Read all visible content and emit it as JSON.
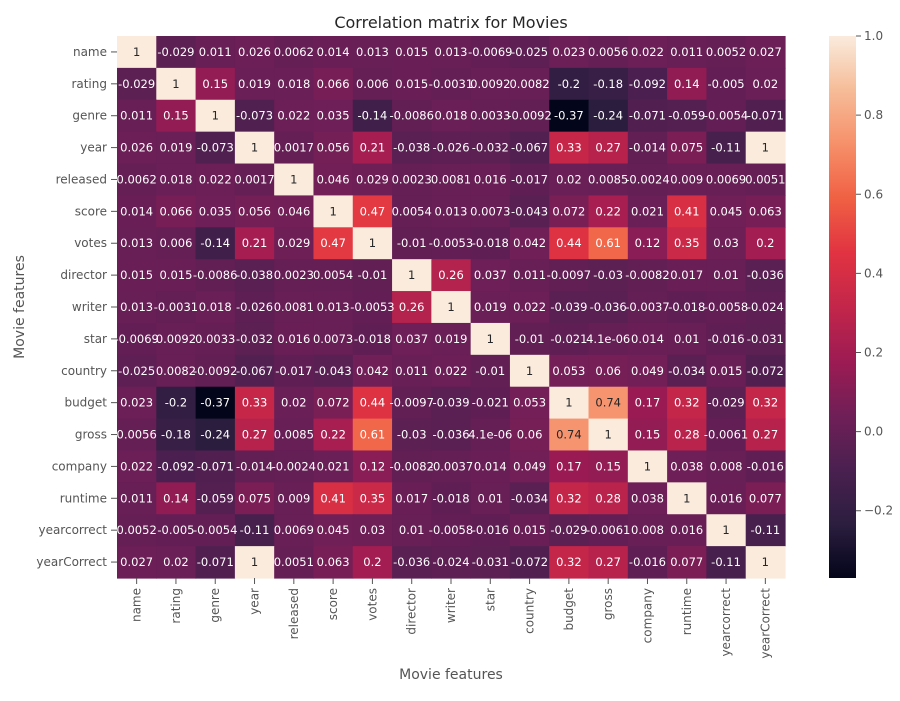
{
  "chart_data": {
    "type": "heatmap",
    "title": "Correlation matrix for Movies",
    "xlabel": "Movie features",
    "ylabel": "Movie features",
    "labels": [
      "name",
      "rating",
      "genre",
      "year",
      "released",
      "score",
      "votes",
      "director",
      "writer",
      "star",
      "country",
      "budget",
      "gross",
      "company",
      "runtime",
      "yearcorrect",
      "yearCorrect"
    ],
    "cell_labels": [
      [
        "1",
        "-0.029",
        "0.011",
        "0.026",
        "0.0062",
        "0.014",
        "0.013",
        "0.015",
        "0.013",
        "-0.0069",
        "-0.025",
        "0.023",
        "0.0056",
        "0.022",
        "0.011",
        "0.0052",
        "0.027"
      ],
      [
        "-0.029",
        "1",
        "0.15",
        "0.019",
        "0.018",
        "0.066",
        "0.006",
        "0.015",
        "-0.0031",
        "0.0092",
        "0.0082",
        "-0.2",
        "-0.18",
        "-0.092",
        "0.14",
        "-0.005",
        "0.02"
      ],
      [
        "0.011",
        "0.15",
        "1",
        "-0.073",
        "0.022",
        "0.035",
        "-0.14",
        "-0.0086",
        "0.018",
        "0.0033",
        "-0.0092",
        "-0.37",
        "-0.24",
        "-0.071",
        "-0.059",
        "-0.0054",
        "-0.071"
      ],
      [
        "0.026",
        "0.019",
        "-0.073",
        "1",
        "0.0017",
        "0.056",
        "0.21",
        "-0.038",
        "-0.026",
        "-0.032",
        "-0.067",
        "0.33",
        "0.27",
        "-0.014",
        "0.075",
        "-0.11",
        "1"
      ],
      [
        "0.0062",
        "0.018",
        "0.022",
        "0.0017",
        "1",
        "0.046",
        "0.029",
        "0.0023",
        "0.0081",
        "0.016",
        "-0.017",
        "0.02",
        "0.0085",
        "-0.0024",
        "0.009",
        "0.0069",
        "0.0051"
      ],
      [
        "0.014",
        "0.066",
        "0.035",
        "0.056",
        "0.046",
        "1",
        "0.47",
        "0.0054",
        "0.013",
        "0.0073",
        "-0.043",
        "0.072",
        "0.22",
        "0.021",
        "0.41",
        "0.045",
        "0.063"
      ],
      [
        "0.013",
        "0.006",
        "-0.14",
        "0.21",
        "0.029",
        "0.47",
        "1",
        "-0.01",
        "-0.0053",
        "-0.018",
        "0.042",
        "0.44",
        "0.61",
        "0.12",
        "0.35",
        "0.03",
        "0.2"
      ],
      [
        "0.015",
        "0.015",
        "-0.0086",
        "-0.038",
        "0.0023",
        "0.0054",
        "-0.01",
        "1",
        "0.26",
        "0.037",
        "0.011",
        "-0.0097",
        "-0.03",
        "-0.0082",
        "0.017",
        "0.01",
        "-0.036"
      ],
      [
        "0.013",
        "-0.0031",
        "0.018",
        "-0.026",
        "0.0081",
        "0.013",
        "-0.0053",
        "0.26",
        "1",
        "0.019",
        "0.022",
        "-0.039",
        "-0.036",
        "-0.0037",
        "-0.018",
        "-0.0058",
        "-0.024"
      ],
      [
        "-0.0069",
        "0.0092",
        "0.0033",
        "-0.032",
        "0.016",
        "0.0073",
        "-0.018",
        "0.037",
        "0.019",
        "1",
        "-0.01",
        "-0.021",
        "4.1e-06",
        "0.014",
        "0.01",
        "-0.016",
        "-0.031"
      ],
      [
        "-0.025",
        "0.0082",
        "-0.0092",
        "-0.067",
        "-0.017",
        "-0.043",
        "0.042",
        "0.011",
        "0.022",
        "-0.01",
        "1",
        "0.053",
        "0.06",
        "0.049",
        "-0.034",
        "0.015",
        "-0.072"
      ],
      [
        "0.023",
        "-0.2",
        "-0.37",
        "0.33",
        "0.02",
        "0.072",
        "0.44",
        "-0.0097",
        "-0.039",
        "-0.021",
        "0.053",
        "1",
        "0.74",
        "0.17",
        "0.32",
        "-0.029",
        "0.32"
      ],
      [
        "0.0056",
        "-0.18",
        "-0.24",
        "0.27",
        "0.0085",
        "0.22",
        "0.61",
        "-0.03",
        "-0.036",
        "4.1e-06",
        "0.06",
        "0.74",
        "1",
        "0.15",
        "0.28",
        "-0.0061",
        "0.27"
      ],
      [
        "0.022",
        "-0.092",
        "-0.071",
        "-0.014",
        "-0.0024",
        "0.021",
        "0.12",
        "-0.0082",
        "-0.0037",
        "0.014",
        "0.049",
        "0.17",
        "0.15",
        "1",
        "0.038",
        "0.008",
        "-0.016"
      ],
      [
        "0.011",
        "0.14",
        "-0.059",
        "0.075",
        "0.009",
        "0.41",
        "0.35",
        "0.017",
        "-0.018",
        "0.01",
        "-0.034",
        "0.32",
        "0.28",
        "0.038",
        "1",
        "0.016",
        "0.077"
      ],
      [
        "0.0052",
        "-0.005",
        "-0.0054",
        "-0.11",
        "0.0069",
        "0.045",
        "0.03",
        "0.01",
        "-0.0058",
        "-0.016",
        "0.015",
        "-0.029",
        "-0.0061",
        "0.008",
        "0.016",
        "1",
        "-0.11"
      ],
      [
        "0.027",
        "0.02",
        "-0.071",
        "1",
        "0.0051",
        "0.063",
        "0.2",
        "-0.036",
        "-0.024",
        "-0.031",
        "-0.072",
        "0.32",
        "0.27",
        "-0.016",
        "0.077",
        "-0.11",
        "1"
      ]
    ],
    "colorbar": {
      "vmin": -0.37,
      "vmax": 1.0,
      "ticks": [
        -0.2,
        0.0,
        0.2,
        0.4,
        0.6,
        0.8,
        1.0
      ],
      "tick_labels": [
        "−0.2",
        "0.0",
        "0.2",
        "0.4",
        "0.6",
        "0.8",
        "1.0"
      ],
      "colormap": "rocket",
      "stops": [
        "#03051a",
        "#2c1e3f",
        "#4a2050",
        "#701f57",
        "#9d1b53",
        "#c3264a",
        "#e13342",
        "#f06043",
        "#f6906a",
        "#f6bc98",
        "#faebdd"
      ]
    },
    "legend": false,
    "grid": false
  }
}
